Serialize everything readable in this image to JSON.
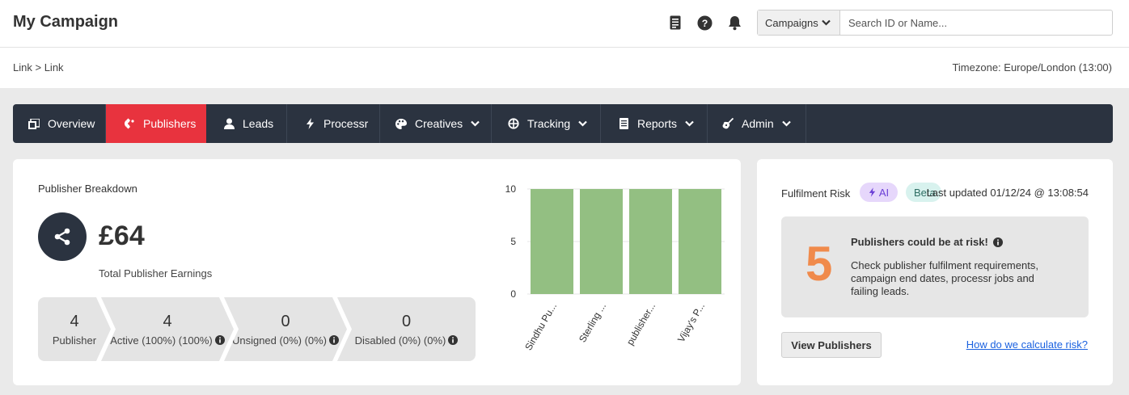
{
  "header": {
    "title": "My Campaign",
    "icons": [
      "document-icon",
      "help-icon",
      "bell-icon"
    ],
    "search": {
      "selected": "Campaigns",
      "placeholder": "Search ID or Name..."
    }
  },
  "breadcrumb": {
    "first": "Link",
    "separator": ">",
    "second": "Link"
  },
  "timezone": "Timezone: Europe/London (13:00)",
  "nav": {
    "tabs": [
      {
        "label": "Overview",
        "icon": "overview-icon"
      },
      {
        "label": "Publishers",
        "icon": "magnet-icon",
        "active": true
      },
      {
        "label": "Leads",
        "icon": "user-icon"
      },
      {
        "label": "Processr",
        "icon": "bolt-icon"
      },
      {
        "label": "Creatives",
        "icon": "palette-icon",
        "dropdown": true
      },
      {
        "label": "Tracking",
        "icon": "crosshair-icon",
        "dropdown": true
      },
      {
        "label": "Reports",
        "icon": "report-icon",
        "dropdown": true
      },
      {
        "label": "Admin",
        "icon": "guitar-icon",
        "dropdown": true
      }
    ],
    "accent": "#e8333e",
    "background": "#2b3340"
  },
  "publisher_breakdown": {
    "title": "Publisher Breakdown",
    "amount": "£64",
    "amount_label": "Total Publisher Earnings",
    "stats": [
      {
        "value": "4",
        "label": "Publisher"
      },
      {
        "value": "4",
        "label": "Active (100%) (100%)"
      },
      {
        "value": "0",
        "label": "Unsigned (0%) (0%)"
      },
      {
        "value": "0",
        "label": "Disabled (0%) (0%)"
      }
    ]
  },
  "chart_data": {
    "type": "bar",
    "categories": [
      "Sindhu Pu...",
      "Sterling ...",
      "publisher...",
      "Vijay's P..."
    ],
    "values": [
      10,
      10,
      10,
      10
    ],
    "yticks": [
      0,
      5,
      10
    ],
    "ylim": [
      0,
      10
    ],
    "color": "#93bf82",
    "grid": true,
    "xlabel": "",
    "ylabel": ""
  },
  "fulfilment": {
    "title": "Fulfilment Risk",
    "badge_ai": "AI",
    "badge_beta": "Beta",
    "last_updated": "Last updated 01/12/24 @ 13:08:54",
    "risk_count": "5",
    "risk_heading": "Publishers could be at risk!",
    "risk_description": "Check publisher fulfilment requirements, campaign end dates, processr jobs and failing leads.",
    "view_button": "View Publishers",
    "calc_link": "How do we calculate risk?",
    "risk_color": "#f08a4b"
  }
}
